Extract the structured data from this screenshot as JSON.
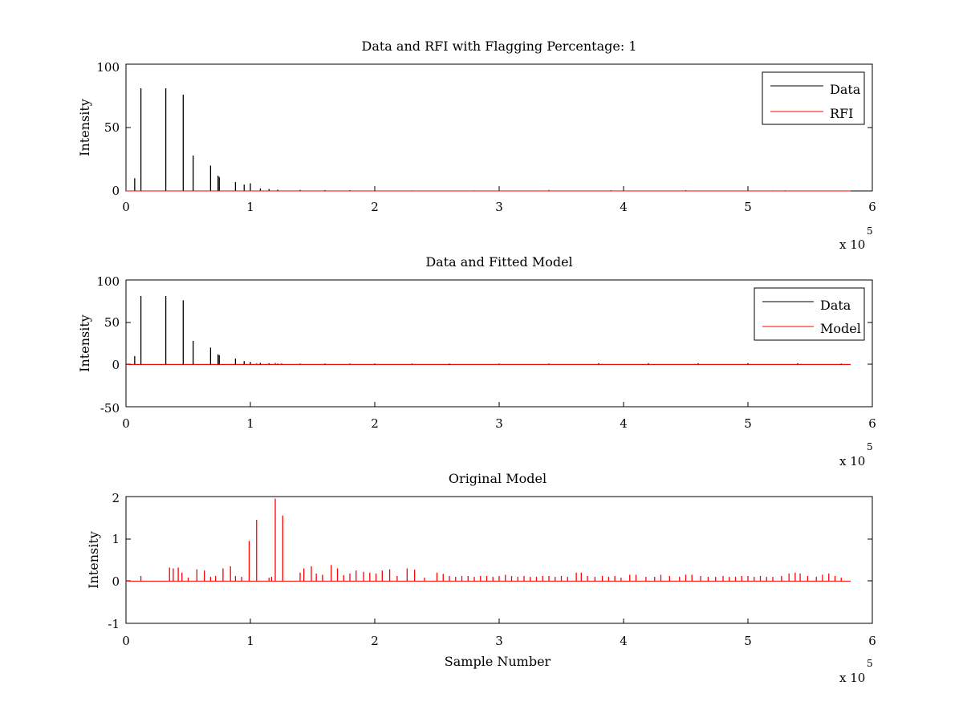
{
  "colors": {
    "data": "#000000",
    "rfi": "#ff0000",
    "model": "#ff0000",
    "axes": "#000000",
    "background": "#ffffff"
  },
  "chart_data": [
    {
      "type": "line",
      "title": "Data and RFI with Flagging Percentage: 1",
      "xlabel": "",
      "ylabel": "Intensity",
      "xlim": [
        0,
        600000
      ],
      "ylim": [
        0,
        100
      ],
      "xticks": [
        0,
        1,
        2,
        3,
        4,
        5,
        6
      ],
      "yticks": [
        0,
        50,
        100
      ],
      "x_multiplier": "x 10",
      "x_multiplier_exp": "5",
      "legend_position": "top-right",
      "series": [
        {
          "name": "Data",
          "color": "#000000",
          "spikes": [
            [
              7000,
              10
            ],
            [
              12000,
              81
            ],
            [
              32000,
              81
            ],
            [
              46000,
              76
            ],
            [
              54000,
              28
            ],
            [
              68000,
              20
            ],
            [
              74000,
              12
            ],
            [
              75000,
              11
            ],
            [
              88000,
              7
            ],
            [
              95000,
              5
            ],
            [
              100000,
              6
            ],
            [
              108000,
              2
            ],
            [
              115000,
              1.5
            ],
            [
              122000,
              1
            ],
            [
              140000,
              0.8
            ],
            [
              160000,
              0.7
            ],
            [
              180000,
              0.6
            ],
            [
              200000,
              0.5
            ],
            [
              230000,
              0.4
            ],
            [
              280000,
              0.4
            ],
            [
              340000,
              0.4
            ],
            [
              400000,
              0.5
            ],
            [
              450000,
              0.4
            ],
            [
              520000,
              0.4
            ],
            [
              570000,
              0.3
            ]
          ]
        },
        {
          "name": "RFI",
          "color": "#ff0000",
          "spikes": [
            [
              340000,
              0.8
            ],
            [
              390000,
              0.6
            ],
            [
              450000,
              0.7
            ],
            [
              530000,
              0.5
            ]
          ]
        }
      ]
    },
    {
      "type": "line",
      "title": "Data and Fitted Model",
      "xlabel": "",
      "ylabel": "Intensity",
      "xlim": [
        0,
        600000
      ],
      "ylim": [
        -50,
        100
      ],
      "xticks": [
        0,
        1,
        2,
        3,
        4,
        5,
        6
      ],
      "yticks": [
        -50,
        0,
        50,
        100
      ],
      "x_multiplier": "x 10",
      "x_multiplier_exp": "5",
      "legend_position": "top-right",
      "series": [
        {
          "name": "Data",
          "color": "#000000",
          "spikes": [
            [
              7000,
              10
            ],
            [
              12000,
              81
            ],
            [
              32000,
              81
            ],
            [
              46000,
              76
            ],
            [
              54000,
              28
            ],
            [
              68000,
              20
            ],
            [
              74000,
              12
            ],
            [
              75000,
              11
            ],
            [
              88000,
              7
            ],
            [
              95000,
              4
            ],
            [
              100000,
              3
            ],
            [
              108000,
              2
            ],
            [
              115000,
              1.5
            ],
            [
              122000,
              1
            ],
            [
              140000,
              1
            ],
            [
              160000,
              1
            ],
            [
              180000,
              1
            ],
            [
              200000,
              1
            ],
            [
              230000,
              1
            ],
            [
              260000,
              1
            ],
            [
              300000,
              1
            ],
            [
              340000,
              1
            ],
            [
              380000,
              1.5
            ],
            [
              420000,
              1.5
            ],
            [
              460000,
              1.5
            ],
            [
              500000,
              1.5
            ],
            [
              540000,
              1.5
            ],
            [
              575000,
              1
            ]
          ]
        },
        {
          "name": "Model",
          "color": "#ff0000",
          "spikes": [
            [
              12000,
              0.2
            ],
            [
              35000,
              0.3
            ],
            [
              60000,
              0.3
            ],
            [
              100000,
              0.9
            ],
            [
              105000,
              1.4
            ],
            [
              120000,
              1.9
            ],
            [
              125000,
              1.5
            ],
            [
              165000,
              0.4
            ],
            [
              250000,
              0.2
            ],
            [
              360000,
              0.2
            ],
            [
              410000,
              0.2
            ],
            [
              540000,
              0.2
            ]
          ]
        }
      ]
    },
    {
      "type": "line",
      "title": "Original Model",
      "xlabel": "Sample Number",
      "ylabel": "Intensity",
      "xlim": [
        0,
        600000
      ],
      "ylim": [
        -1,
        2
      ],
      "xticks": [
        0,
        1,
        2,
        3,
        4,
        5,
        6
      ],
      "yticks": [
        -1,
        0,
        1,
        2
      ],
      "x_multiplier": "x 10",
      "x_multiplier_exp": "5",
      "series": [
        {
          "color": "#ff0000",
          "spikes": [
            [
              12000,
              0.12
            ],
            [
              35000,
              0.32
            ],
            [
              38000,
              0.3
            ],
            [
              42000,
              0.32
            ],
            [
              45000,
              0.2
            ],
            [
              50000,
              0.08
            ],
            [
              57000,
              0.28
            ],
            [
              63000,
              0.25
            ],
            [
              68000,
              0.1
            ],
            [
              72000,
              0.12
            ],
            [
              78000,
              0.3
            ],
            [
              84000,
              0.35
            ],
            [
              88000,
              0.12
            ],
            [
              93000,
              0.1
            ],
            [
              99000,
              0.95
            ],
            [
              105000,
              1.45
            ],
            [
              115000,
              0.08
            ],
            [
              117000,
              0.1
            ],
            [
              120000,
              1.95
            ],
            [
              126000,
              1.55
            ],
            [
              140000,
              0.2
            ],
            [
              143000,
              0.3
            ],
            [
              149000,
              0.35
            ],
            [
              153000,
              0.18
            ],
            [
              158000,
              0.15
            ],
            [
              165000,
              0.38
            ],
            [
              170000,
              0.3
            ],
            [
              175000,
              0.14
            ],
            [
              180000,
              0.18
            ],
            [
              185000,
              0.25
            ],
            [
              191000,
              0.22
            ],
            [
              196000,
              0.2
            ],
            [
              201000,
              0.18
            ],
            [
              206000,
              0.25
            ],
            [
              212000,
              0.28
            ],
            [
              218000,
              0.12
            ],
            [
              226000,
              0.3
            ],
            [
              232000,
              0.27
            ],
            [
              240000,
              0.08
            ],
            [
              250000,
              0.2
            ],
            [
              255000,
              0.17
            ],
            [
              260000,
              0.12
            ],
            [
              265000,
              0.1
            ],
            [
              270000,
              0.12
            ],
            [
              275000,
              0.12
            ],
            [
              280000,
              0.1
            ],
            [
              285000,
              0.12
            ],
            [
              290000,
              0.12
            ],
            [
              295000,
              0.1
            ],
            [
              300000,
              0.12
            ],
            [
              305000,
              0.15
            ],
            [
              310000,
              0.12
            ],
            [
              315000,
              0.1
            ],
            [
              320000,
              0.12
            ],
            [
              325000,
              0.1
            ],
            [
              330000,
              0.1
            ],
            [
              335000,
              0.12
            ],
            [
              340000,
              0.12
            ],
            [
              345000,
              0.1
            ],
            [
              350000,
              0.12
            ],
            [
              355000,
              0.1
            ],
            [
              362000,
              0.2
            ],
            [
              366000,
              0.2
            ],
            [
              371000,
              0.12
            ],
            [
              377000,
              0.1
            ],
            [
              383000,
              0.12
            ],
            [
              388000,
              0.1
            ],
            [
              393000,
              0.12
            ],
            [
              398000,
              0.08
            ],
            [
              405000,
              0.15
            ],
            [
              410000,
              0.15
            ],
            [
              418000,
              0.1
            ],
            [
              425000,
              0.1
            ],
            [
              430000,
              0.15
            ],
            [
              437000,
              0.12
            ],
            [
              445000,
              0.1
            ],
            [
              450000,
              0.15
            ],
            [
              455000,
              0.15
            ],
            [
              462000,
              0.12
            ],
            [
              468000,
              0.1
            ],
            [
              474000,
              0.1
            ],
            [
              480000,
              0.12
            ],
            [
              485000,
              0.1
            ],
            [
              490000,
              0.1
            ],
            [
              495000,
              0.12
            ],
            [
              500000,
              0.12
            ],
            [
              505000,
              0.1
            ],
            [
              510000,
              0.12
            ],
            [
              515000,
              0.1
            ],
            [
              520000,
              0.1
            ],
            [
              527000,
              0.12
            ],
            [
              533000,
              0.18
            ],
            [
              538000,
              0.2
            ],
            [
              542000,
              0.18
            ],
            [
              548000,
              0.12
            ],
            [
              555000,
              0.1
            ],
            [
              560000,
              0.15
            ],
            [
              565000,
              0.18
            ],
            [
              570000,
              0.12
            ],
            [
              575000,
              0.08
            ]
          ]
        }
      ]
    }
  ]
}
